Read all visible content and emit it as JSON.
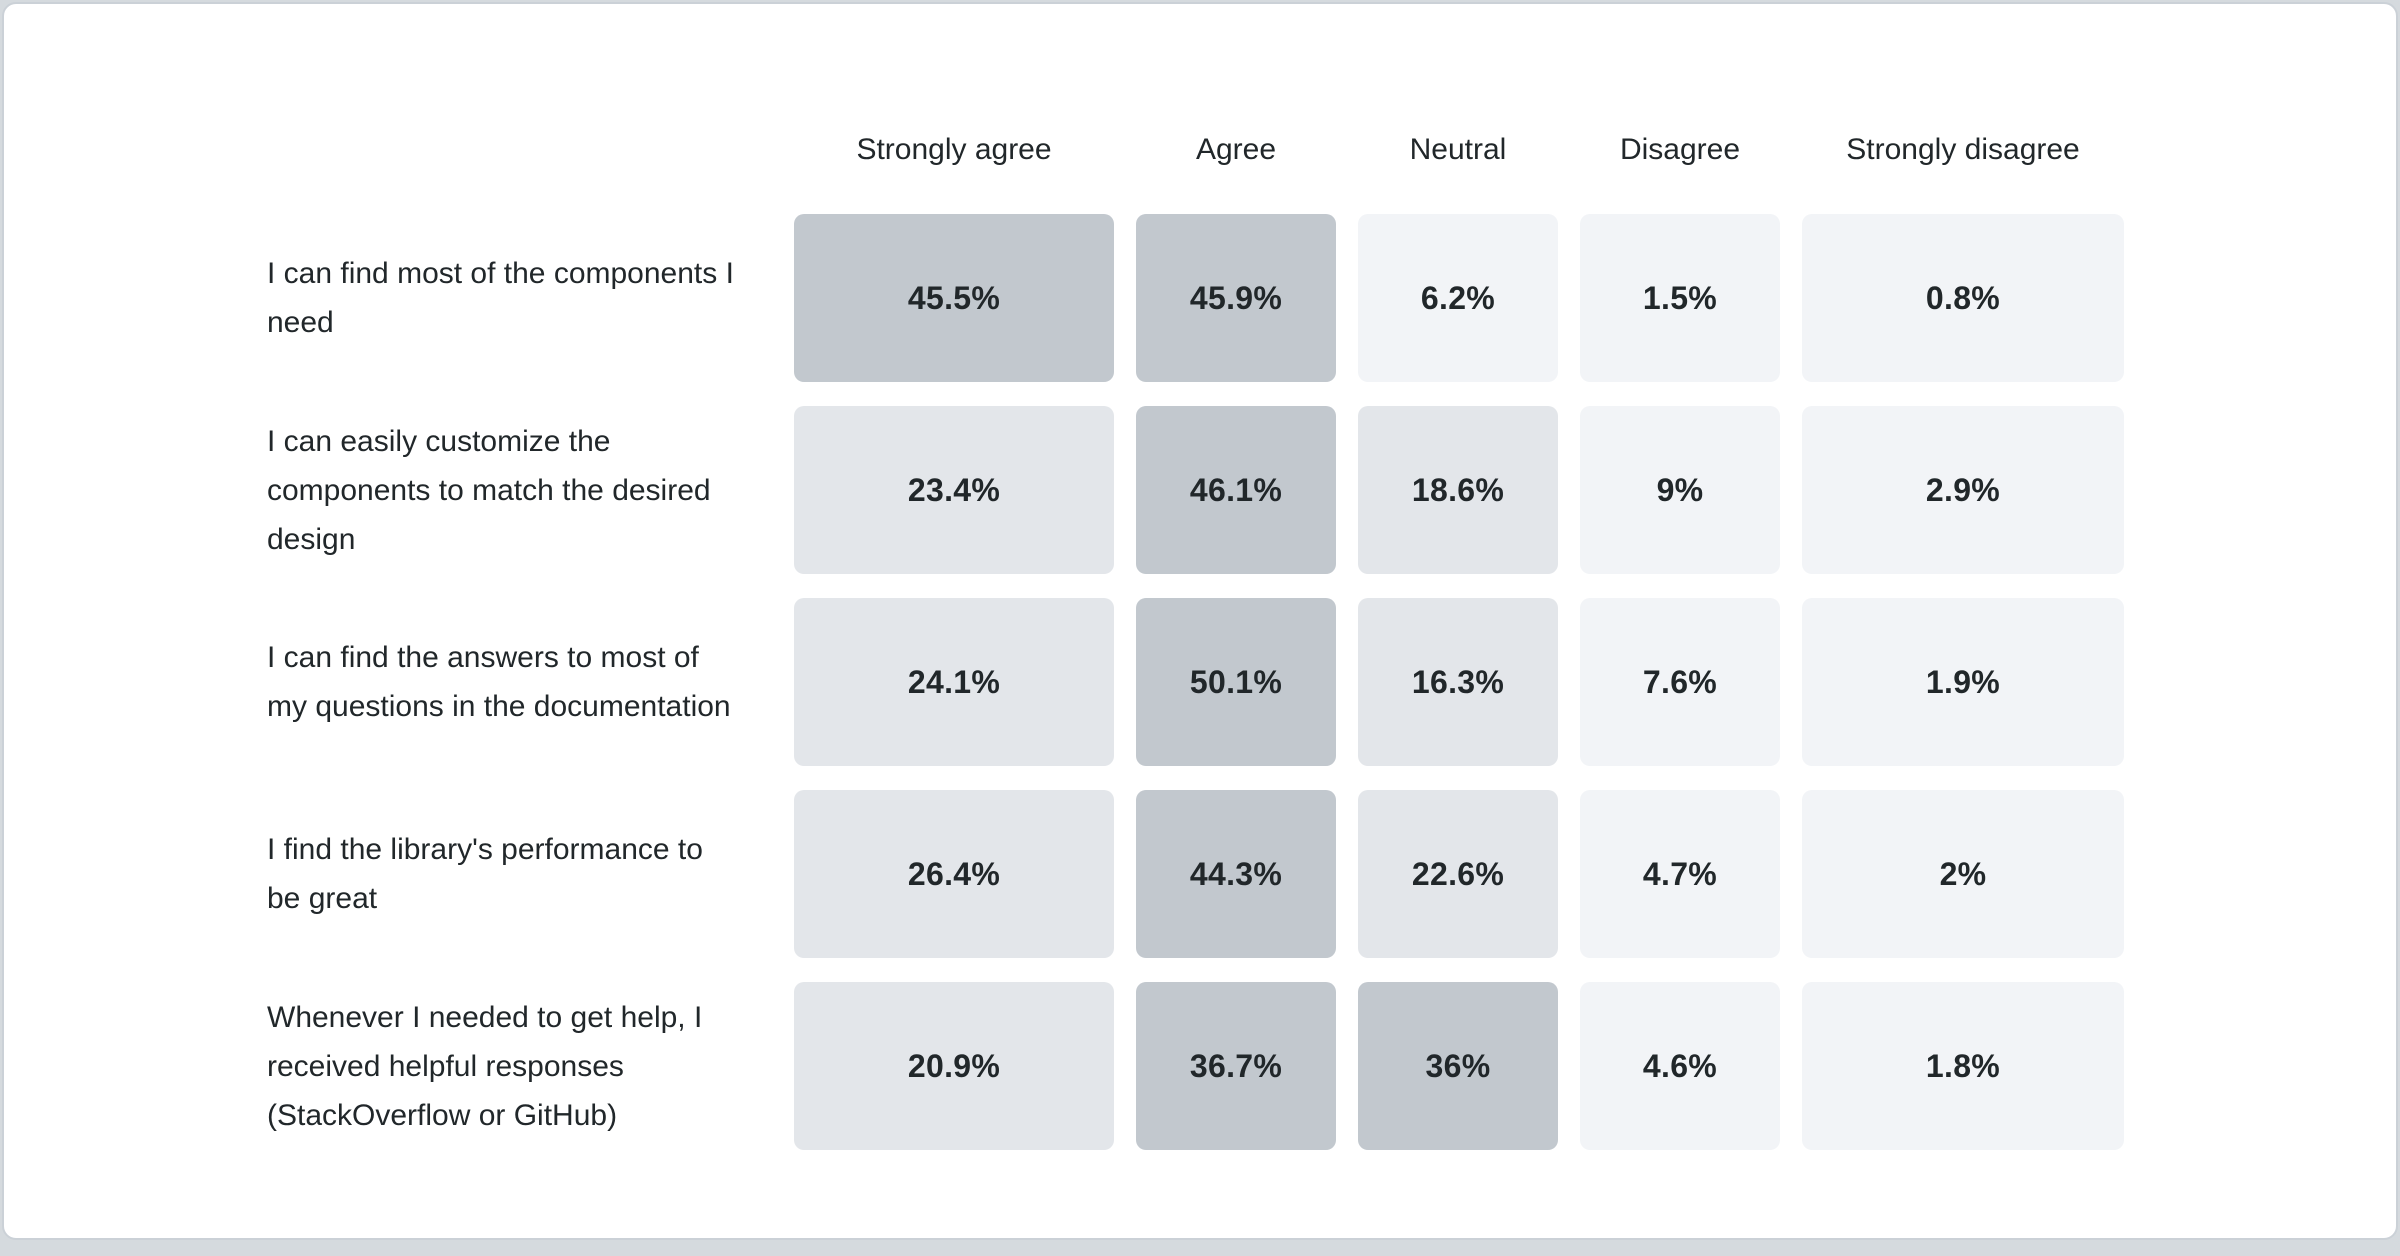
{
  "page": {
    "background_color": "#d5dade"
  },
  "card": {
    "background_color": "#ffffff",
    "border_color": "#cbd1d7"
  },
  "chart_data": {
    "type": "heatmap",
    "title": "",
    "columns": [
      "Strongly agree",
      "Agree",
      "Neutral",
      "Disagree",
      "Strongly disagree"
    ],
    "rows": [
      {
        "label": "I can find most of the components I need",
        "values": [
          45.5,
          45.9,
          6.2,
          1.5,
          0.8
        ],
        "labels": [
          "45.5%",
          "45.9%",
          "6.2%",
          "1.5%",
          "0.8%"
        ]
      },
      {
        "label": "I can easily customize the components to match the desired design",
        "values": [
          23.4,
          46.1,
          18.6,
          9,
          2.9
        ],
        "labels": [
          "23.4%",
          "46.1%",
          "18.6%",
          "9%",
          "2.9%"
        ]
      },
      {
        "label": "I can find the answers to most of my questions in the documentation",
        "values": [
          24.1,
          50.1,
          16.3,
          7.6,
          1.9
        ],
        "labels": [
          "24.1%",
          "50.1%",
          "16.3%",
          "7.6%",
          "1.9%"
        ]
      },
      {
        "label": "I find the library's performance to be great",
        "values": [
          26.4,
          44.3,
          22.6,
          4.7,
          2
        ],
        "labels": [
          "26.4%",
          "44.3%",
          "22.6%",
          "4.7%",
          "2%"
        ]
      },
      {
        "label": "Whenever I needed to get help, I received helpful responses (StackOverflow or GitHub)",
        "values": [
          20.9,
          36.7,
          36,
          4.6,
          1.8
        ],
        "labels": [
          "20.9%",
          "36.7%",
          "36%",
          "4.6%",
          "1.8%"
        ]
      }
    ],
    "value_unit": "%",
    "color_scale": {
      "description": "cell shade buckets by percentage value",
      "buckets": [
        {
          "min": 30,
          "name": "high",
          "color": "#c2c8ce"
        },
        {
          "min": 10,
          "name": "mid",
          "color": "#e3e6ea"
        },
        {
          "min": 0,
          "name": "low",
          "color": "#f2f4f7"
        }
      ],
      "text_color": "#21272a"
    },
    "legend_position": "none",
    "grid": false
  }
}
